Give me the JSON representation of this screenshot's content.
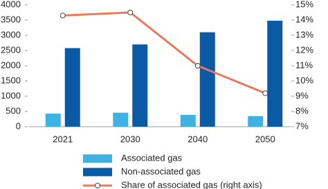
{
  "chart_data": {
    "type": "bar-line",
    "categories": [
      "2021",
      "2030",
      "2040",
      "2050"
    ],
    "series": [
      {
        "name": "Associated gas",
        "color": "#3fb1e3",
        "type": "bar",
        "values": [
          430,
          460,
          390,
          350
        ]
      },
      {
        "name": "Non-associated gas",
        "color": "#0b5aa6",
        "type": "bar",
        "values": [
          2580,
          2700,
          3100,
          3480
        ]
      },
      {
        "name": "Share of associated gas (right axis)",
        "color": "#e8795a",
        "type": "line",
        "axis": "y2",
        "values": [
          14.3,
          14.5,
          11.0,
          9.2
        ]
      }
    ],
    "ylim": [
      0,
      4000
    ],
    "yticks": [
      0,
      500,
      1000,
      1500,
      2000,
      2500,
      3000,
      3500,
      4000
    ],
    "y2lim": [
      7,
      15
    ],
    "y2ticks": [
      {
        "value": 7,
        "label": "7%"
      },
      {
        "value": 8,
        "label": "8%"
      },
      {
        "value": 9,
        "label": "9%"
      },
      {
        "value": 10,
        "label": "10%"
      },
      {
        "value": 11,
        "label": "11%"
      },
      {
        "value": 12,
        "label": "12%"
      },
      {
        "value": 13,
        "label": "13%"
      },
      {
        "value": 14,
        "label": "14%"
      },
      {
        "value": 15,
        "label": "15%"
      }
    ],
    "grid": false
  }
}
